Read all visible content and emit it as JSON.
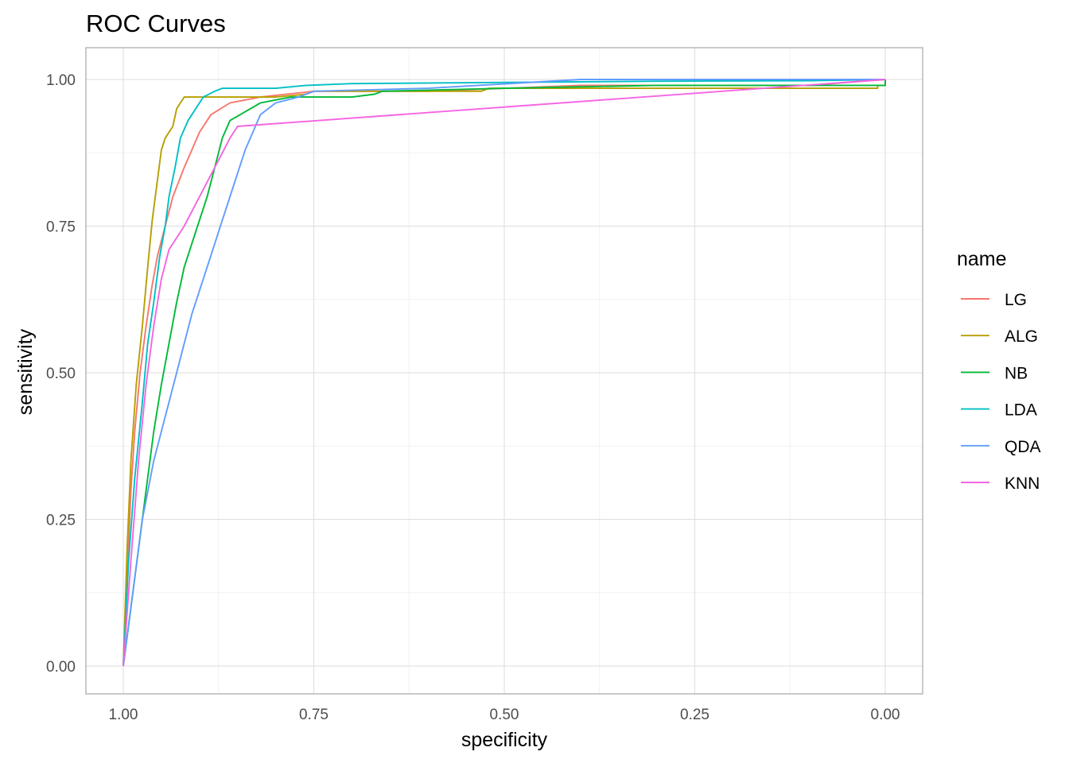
{
  "chart_data": {
    "type": "line",
    "title": "ROC Curves",
    "xlabel": "specificity",
    "ylabel": "sensitivity",
    "xlim": [
      1.0,
      0.0
    ],
    "ylim": [
      0.0,
      1.0
    ],
    "x_reversed": true,
    "grid": true,
    "x_ticks": [
      1.0,
      0.75,
      0.5,
      0.25,
      0.0
    ],
    "x_tick_labels": [
      "1.00",
      "0.75",
      "0.50",
      "0.25",
      "0.00"
    ],
    "y_ticks": [
      0.0,
      0.25,
      0.5,
      0.75,
      1.0
    ],
    "y_tick_labels": [
      "0.00",
      "0.25",
      "0.50",
      "0.75",
      "1.00"
    ],
    "legend": {
      "title": "name",
      "position": "right"
    },
    "series": [
      {
        "name": "LG",
        "color": "#F8766D",
        "points": [
          [
            1.0,
            0.0
          ],
          [
            0.995,
            0.15
          ],
          [
            0.99,
            0.3
          ],
          [
            0.985,
            0.4
          ],
          [
            0.978,
            0.5
          ],
          [
            0.97,
            0.58
          ],
          [
            0.962,
            0.65
          ],
          [
            0.955,
            0.7
          ],
          [
            0.945,
            0.75
          ],
          [
            0.935,
            0.8
          ],
          [
            0.92,
            0.85
          ],
          [
            0.91,
            0.88
          ],
          [
            0.9,
            0.91
          ],
          [
            0.885,
            0.94
          ],
          [
            0.86,
            0.96
          ],
          [
            0.82,
            0.97
          ],
          [
            0.75,
            0.98
          ],
          [
            0.6,
            0.98
          ],
          [
            0.4,
            0.99
          ],
          [
            0.1,
            0.99
          ],
          [
            0.0,
            1.0
          ]
        ]
      },
      {
        "name": "ALG",
        "color": "#B79F00",
        "points": [
          [
            1.0,
            0.0
          ],
          [
            0.995,
            0.2
          ],
          [
            0.99,
            0.35
          ],
          [
            0.983,
            0.48
          ],
          [
            0.975,
            0.58
          ],
          [
            0.968,
            0.68
          ],
          [
            0.962,
            0.76
          ],
          [
            0.955,
            0.83
          ],
          [
            0.95,
            0.88
          ],
          [
            0.945,
            0.9
          ],
          [
            0.935,
            0.92
          ],
          [
            0.93,
            0.95
          ],
          [
            0.925,
            0.96
          ],
          [
            0.92,
            0.97
          ],
          [
            0.88,
            0.97
          ],
          [
            0.85,
            0.97
          ],
          [
            0.8,
            0.97
          ],
          [
            0.76,
            0.975
          ],
          [
            0.75,
            0.98
          ],
          [
            0.53,
            0.98
          ],
          [
            0.52,
            0.985
          ],
          [
            0.01,
            0.985
          ],
          [
            0.01,
            0.99
          ],
          [
            0.0,
            0.99
          ],
          [
            0.0,
            1.0
          ]
        ]
      },
      {
        "name": "NB",
        "color": "#00BA38",
        "points": [
          [
            1.0,
            0.0
          ],
          [
            0.99,
            0.1
          ],
          [
            0.98,
            0.2
          ],
          [
            0.97,
            0.3
          ],
          [
            0.96,
            0.4
          ],
          [
            0.95,
            0.48
          ],
          [
            0.94,
            0.55
          ],
          [
            0.93,
            0.62
          ],
          [
            0.92,
            0.68
          ],
          [
            0.91,
            0.72
          ],
          [
            0.9,
            0.76
          ],
          [
            0.89,
            0.8
          ],
          [
            0.88,
            0.85
          ],
          [
            0.87,
            0.9
          ],
          [
            0.86,
            0.93
          ],
          [
            0.84,
            0.945
          ],
          [
            0.82,
            0.96
          ],
          [
            0.78,
            0.97
          ],
          [
            0.7,
            0.97
          ],
          [
            0.67,
            0.975
          ],
          [
            0.66,
            0.98
          ],
          [
            0.5,
            0.985
          ],
          [
            0.3,
            0.99
          ],
          [
            0.1,
            0.99
          ],
          [
            0.0,
            0.99
          ],
          [
            0.0,
            1.0
          ]
        ]
      },
      {
        "name": "LDA",
        "color": "#00BFC4",
        "points": [
          [
            1.0,
            0.0
          ],
          [
            0.993,
            0.18
          ],
          [
            0.985,
            0.32
          ],
          [
            0.975,
            0.45
          ],
          [
            0.968,
            0.55
          ],
          [
            0.96,
            0.62
          ],
          [
            0.952,
            0.7
          ],
          [
            0.945,
            0.75
          ],
          [
            0.94,
            0.8
          ],
          [
            0.932,
            0.85
          ],
          [
            0.925,
            0.9
          ],
          [
            0.915,
            0.93
          ],
          [
            0.905,
            0.95
          ],
          [
            0.895,
            0.97
          ],
          [
            0.88,
            0.98
          ],
          [
            0.87,
            0.985
          ],
          [
            0.8,
            0.985
          ],
          [
            0.76,
            0.99
          ],
          [
            0.7,
            0.993
          ],
          [
            0.5,
            0.995
          ],
          [
            0.3,
            0.997
          ],
          [
            0.1,
            0.998
          ],
          [
            0.0,
            1.0
          ]
        ]
      },
      {
        "name": "QDA",
        "color": "#619CFF",
        "points": [
          [
            1.0,
            0.0
          ],
          [
            0.99,
            0.1
          ],
          [
            0.98,
            0.2
          ],
          [
            0.975,
            0.25
          ],
          [
            0.96,
            0.35
          ],
          [
            0.95,
            0.4
          ],
          [
            0.94,
            0.45
          ],
          [
            0.93,
            0.5
          ],
          [
            0.92,
            0.55
          ],
          [
            0.91,
            0.6
          ],
          [
            0.9,
            0.64
          ],
          [
            0.89,
            0.68
          ],
          [
            0.88,
            0.72
          ],
          [
            0.87,
            0.76
          ],
          [
            0.86,
            0.8
          ],
          [
            0.85,
            0.84
          ],
          [
            0.84,
            0.88
          ],
          [
            0.83,
            0.91
          ],
          [
            0.82,
            0.94
          ],
          [
            0.8,
            0.96
          ],
          [
            0.77,
            0.97
          ],
          [
            0.75,
            0.98
          ],
          [
            0.6,
            0.985
          ],
          [
            0.4,
            1.0
          ],
          [
            0.1,
            1.0
          ],
          [
            0.0,
            1.0
          ]
        ]
      },
      {
        "name": "KNN",
        "color": "#F564E3",
        "points": [
          [
            1.0,
            0.0
          ],
          [
            0.99,
            0.18
          ],
          [
            0.98,
            0.35
          ],
          [
            0.97,
            0.48
          ],
          [
            0.96,
            0.58
          ],
          [
            0.95,
            0.66
          ],
          [
            0.94,
            0.71
          ],
          [
            0.92,
            0.75
          ],
          [
            0.9,
            0.8
          ],
          [
            0.88,
            0.85
          ],
          [
            0.86,
            0.9
          ],
          [
            0.85,
            0.92
          ],
          [
            0.0,
            1.0
          ]
        ]
      }
    ]
  }
}
